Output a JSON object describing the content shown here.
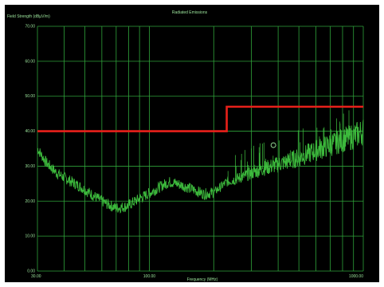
{
  "chart_data": {
    "type": "line",
    "title": "Radiated Emissions",
    "xlabel": "Frequency (MHz)",
    "ylabel": "Field Strength (dBµV/m)",
    "x_scale": "log",
    "xlim": [
      30,
      1000
    ],
    "ylim": [
      0,
      70
    ],
    "grid": true,
    "y_ticks": [
      "0.00",
      "10.00",
      "20.00",
      "30.00",
      "40.00",
      "50.00",
      "60.00",
      "70.00"
    ],
    "y_tick_values": [
      0,
      10,
      20,
      30,
      40,
      50,
      60,
      70
    ],
    "x_ticks": [
      "30.00",
      "100.00",
      "1000.00"
    ],
    "x_tick_values": [
      30,
      100,
      1000
    ],
    "x_grid_values": [
      30,
      40,
      50,
      60,
      70,
      80,
      90,
      100,
      200,
      300,
      400,
      500,
      600,
      700,
      800,
      900,
      1000
    ],
    "series": [
      {
        "color": "#e8201a",
        "x": [
          30,
          230,
          230,
          1000
        ],
        "y": [
          40,
          40,
          47,
          47
        ]
      },
      {
        "color": "#3fc23f",
        "x": [
          30,
          33,
          37,
          42,
          48,
          55,
          62,
          70,
          78,
          86,
          95,
          105,
          115,
          125,
          135,
          150,
          165,
          180,
          200,
          215,
          230,
          260,
          300,
          350,
          400,
          450,
          500,
          550,
          600,
          700,
          800,
          900,
          1000
        ],
        "y": [
          35,
          31,
          28,
          26,
          24,
          21.5,
          19.5,
          18,
          18.5,
          20,
          21.5,
          23,
          24.5,
          25.5,
          25,
          24,
          23,
          22,
          22.5,
          24,
          25.5,
          26.5,
          28,
          29.5,
          30.5,
          31.5,
          32.5,
          33.5,
          34.5,
          36,
          37.5,
          38.5,
          40
        ]
      }
    ],
    "annotations": [
      {
        "label": "marker",
        "x": 380,
        "y": 36
      }
    ]
  }
}
